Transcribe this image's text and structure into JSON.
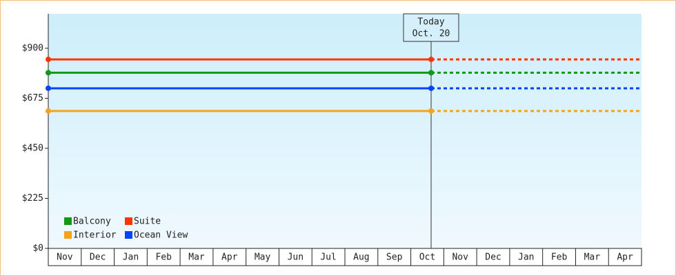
{
  "chart_data": {
    "type": "flat-line",
    "categories": [
      "Nov",
      "Dec",
      "Jan",
      "Feb",
      "Mar",
      "Apr",
      "May",
      "Jun",
      "Jul",
      "Aug",
      "Sep",
      "Oct",
      "Nov",
      "Dec",
      "Jan",
      "Feb",
      "Mar",
      "Apr"
    ],
    "series": [
      {
        "name": "Balcony",
        "color": "#119911",
        "value": 790
      },
      {
        "name": "Suite",
        "color": "#ff3300",
        "value": 850
      },
      {
        "name": "Interior",
        "color": "#f5a31a",
        "value": 618
      },
      {
        "name": "Ocean View",
        "color": "#0044ff",
        "value": 720
      }
    ],
    "today": {
      "label": "Today",
      "date": "Oct. 20"
    },
    "ylim": [
      0,
      1055
    ],
    "yticks": [
      {
        "value": 0,
        "label": "$0"
      },
      {
        "value": 225,
        "label": "$225"
      },
      {
        "value": 450,
        "label": "$450"
      },
      {
        "value": 675,
        "label": "$675"
      },
      {
        "value": 900,
        "label": "$900"
      }
    ],
    "legend": "bottom-left"
  }
}
